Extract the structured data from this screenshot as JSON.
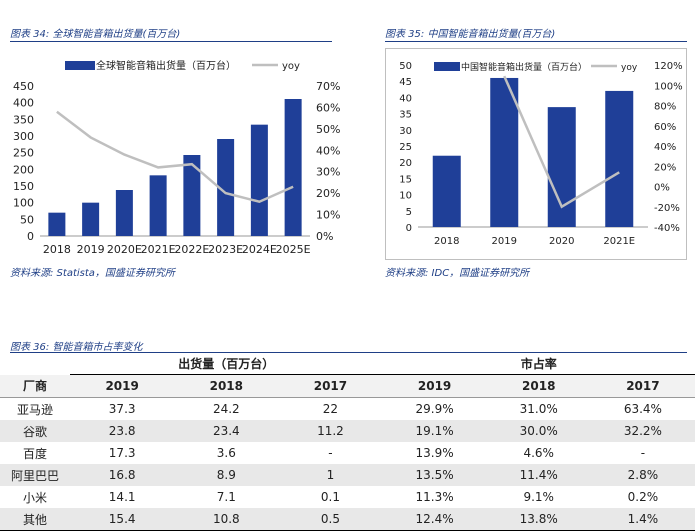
{
  "figure34": {
    "caption": "图表 34:  全球智能音箱出货量(百万台)",
    "source": "资料来源:  Statista，国盛证券研究所"
  },
  "figure35": {
    "caption": "图表 35:   中国智能音箱出货量(百万台)",
    "source": "资料来源:  IDC，国盛证券研究所"
  },
  "figure36": {
    "caption": "图表 36:  智能音箱市占率变化",
    "group_headers": [
      "出货量（百万台）",
      "市占率"
    ],
    "columns": [
      "厂商",
      "2019",
      "2018",
      "2017",
      "2019",
      "2018",
      "2017"
    ],
    "rows": [
      [
        "亚马逊",
        "37.3",
        "24.2",
        "22",
        "29.9%",
        "31.0%",
        "63.4%"
      ],
      [
        "谷歌",
        "23.8",
        "23.4",
        "11.2",
        "19.1%",
        "30.0%",
        "32.2%"
      ],
      [
        "百度",
        "17.3",
        "3.6",
        "-",
        "13.9%",
        "4.6%",
        "-"
      ],
      [
        "阿里巴巴",
        "16.8",
        "8.9",
        "1",
        "13.5%",
        "11.4%",
        "2.8%"
      ],
      [
        "小米",
        "14.1",
        "7.1",
        "0.1",
        "11.3%",
        "9.1%",
        "0.2%"
      ],
      [
        "其他",
        "15.4",
        "10.8",
        "0.5",
        "12.4%",
        "13.8%",
        "1.4%"
      ]
    ]
  },
  "chart_data": [
    {
      "type": "bar",
      "categories": [
        "2018",
        "2019",
        "2020E",
        "2021E",
        "2022E",
        "2023E",
        "2024E",
        "2025E"
      ],
      "series": [
        {
          "name": "全球智能音箱出货量（百万台）",
          "type": "bar",
          "axis": "left",
          "values": [
            70,
            100,
            138,
            182,
            243,
            291,
            334,
            411
          ],
          "color": "#1f3f98"
        },
        {
          "name": "yoy",
          "type": "line",
          "axis": "right",
          "values": [
            0.58,
            0.46,
            0.38,
            0.32,
            0.335,
            0.2,
            0.16,
            0.23
          ],
          "color": "#bfbfbf"
        }
      ],
      "ylim_left": [
        0,
        450
      ],
      "yticks_left": [
        "0",
        "50",
        "100",
        "150",
        "200",
        "250",
        "300",
        "350",
        "400",
        "450"
      ],
      "ylim_right": [
        0,
        0.7
      ],
      "yticks_right": [
        "0%",
        "10%",
        "20%",
        "30%",
        "40%",
        "50%",
        "60%",
        "70%"
      ],
      "legend": "top"
    },
    {
      "type": "bar",
      "categories": [
        "2018",
        "2019",
        "2020",
        "2021E"
      ],
      "series": [
        {
          "name": "中国智能音箱出货量（百万台）",
          "type": "bar",
          "axis": "left",
          "values": [
            22,
            46,
            37,
            42
          ],
          "color": "#1f3f98"
        },
        {
          "name": "yoy",
          "type": "line",
          "axis": "right",
          "values": [
            null,
            1.09,
            -0.2,
            0.14
          ],
          "color": "#bfbfbf"
        }
      ],
      "ylim_left": [
        0,
        50
      ],
      "yticks_left": [
        "0",
        "5",
        "10",
        "15",
        "20",
        "25",
        "30",
        "35",
        "40",
        "45",
        "50"
      ],
      "ylim_right": [
        -0.4,
        1.2
      ],
      "yticks_right": [
        "-40%",
        "-20%",
        "0%",
        "20%",
        "40%",
        "60%",
        "80%",
        "100%",
        "120%"
      ],
      "legend": "top"
    }
  ]
}
